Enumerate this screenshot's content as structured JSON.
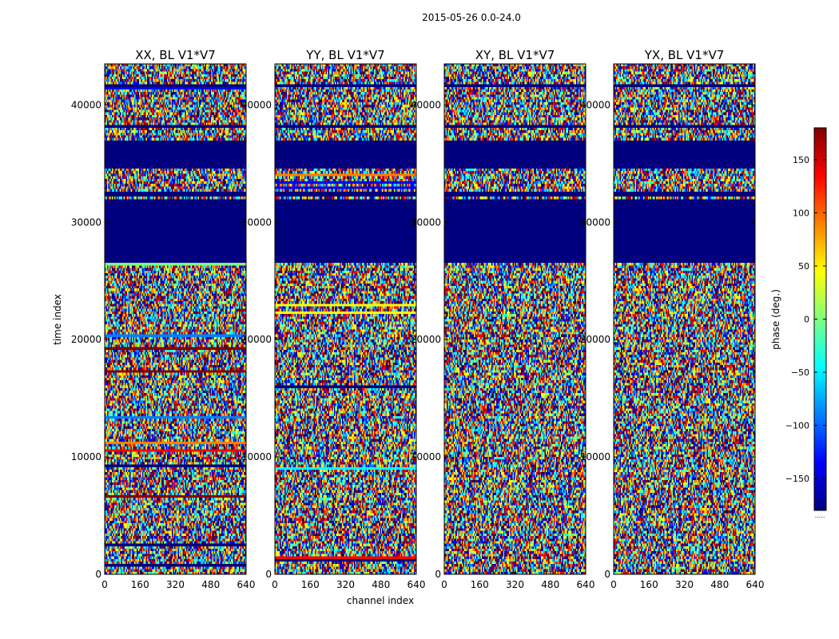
{
  "figure_title": "2015-05-26 0.0-24.0",
  "colors": {
    "jet": [
      "#00007f",
      "#0000ff",
      "#007fff",
      "#00ffff",
      "#7fff7f",
      "#ffff00",
      "#ff7f00",
      "#ff0000",
      "#7f0000"
    ],
    "flagged": "#00007f"
  },
  "chart_data": {
    "type": "heatmap",
    "title": "2015-05-26 0.0-24.0",
    "xlabel": "channel index",
    "ylabel": "time index",
    "xlim": [
      0,
      640
    ],
    "ylim": [
      0,
      43500
    ],
    "xticks": [
      0,
      160,
      320,
      480,
      640
    ],
    "yticks": [
      0,
      10000,
      20000,
      30000,
      40000
    ],
    "panels": [
      {
        "title": "XX, BL V1*V7"
      },
      {
        "title": "YY, BL V1*V7"
      },
      {
        "title": "XY, BL V1*V7"
      },
      {
        "title": "YX, BL V1*V7"
      }
    ],
    "flagged_time_ranges": [
      [
        26500,
        31500
      ],
      [
        31600,
        32000
      ],
      [
        32200,
        32700
      ],
      [
        34500,
        37000
      ],
      [
        38000,
        38300
      ],
      [
        41500,
        41800
      ]
    ],
    "colorbar": {
      "label": "phase (deg.)",
      "range": [
        -180,
        180
      ],
      "ticks": [
        150,
        100,
        50,
        0,
        -50,
        -100,
        -150
      ],
      "tick_labels": [
        "150",
        "100",
        "50",
        "0",
        "−50",
        "−100",
        "−150"
      ],
      "bottom_label": "....."
    }
  }
}
